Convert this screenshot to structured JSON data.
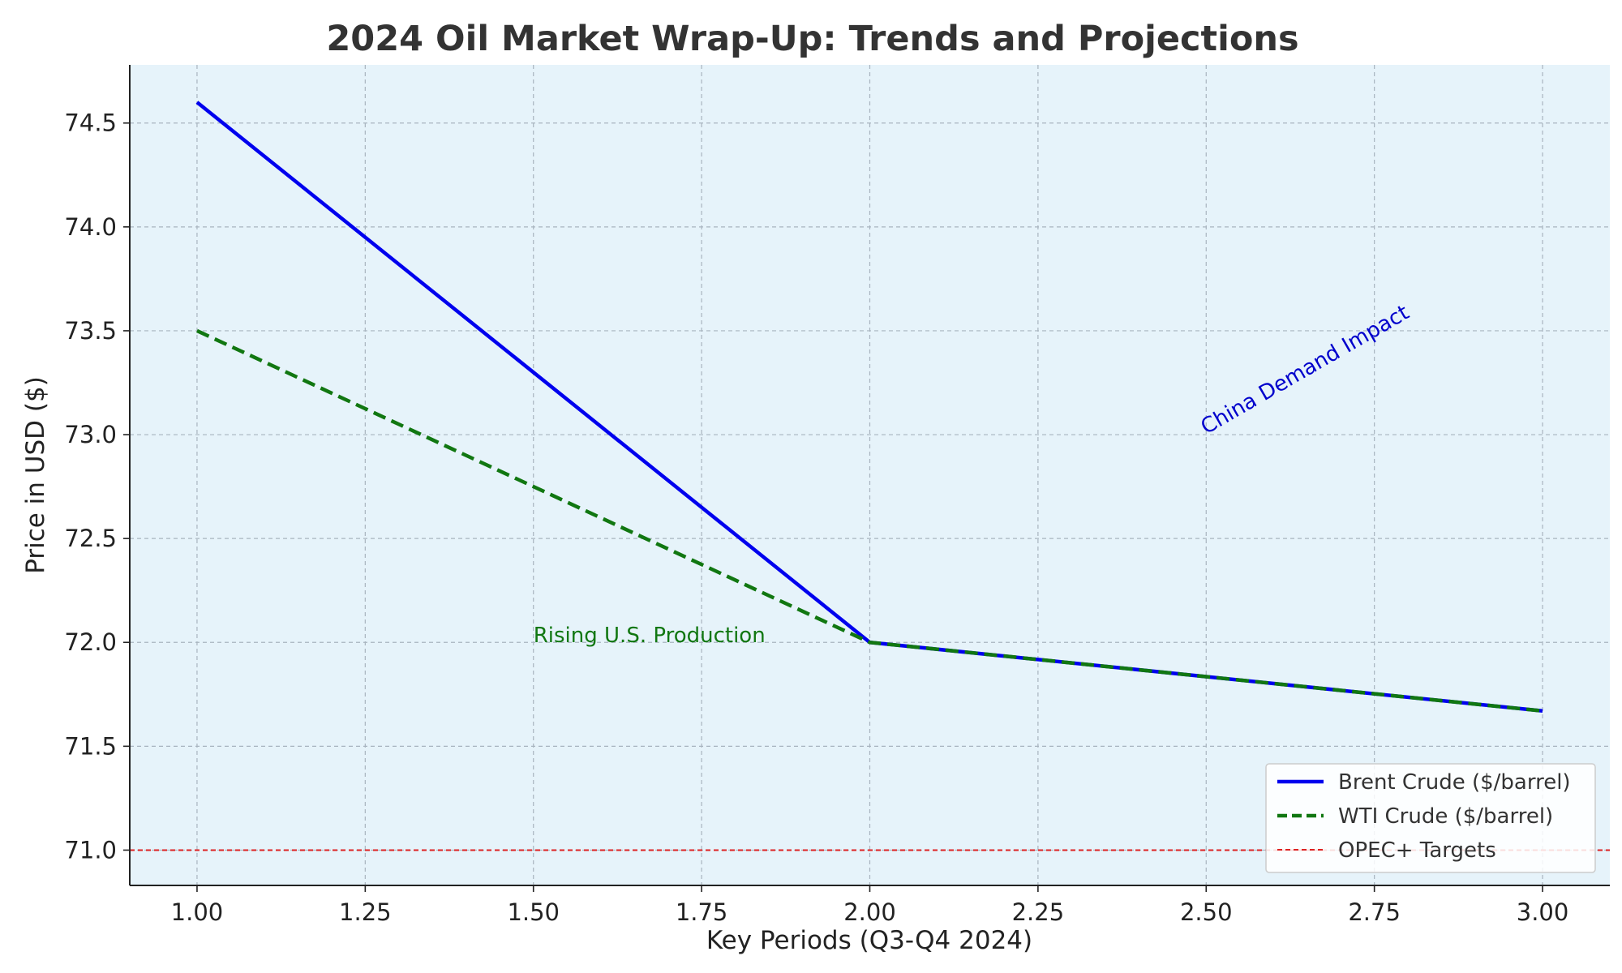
{
  "chart_data": {
    "type": "line",
    "title": "2024 Oil Market Wrap-Up: Trends and Projections",
    "xlabel": "Key Periods (Q3-Q4 2024)",
    "ylabel": "Price in USD ($)",
    "xlim": [
      0.9,
      3.1
    ],
    "ylim": [
      70.83,
      74.78
    ],
    "xticks": [
      1.0,
      1.25,
      1.5,
      1.75,
      2.0,
      2.25,
      2.5,
      2.75,
      3.0
    ],
    "xtick_labels": [
      "1.00",
      "1.25",
      "1.50",
      "1.75",
      "2.00",
      "2.25",
      "2.50",
      "2.75",
      "3.00"
    ],
    "yticks": [
      71.0,
      71.5,
      72.0,
      72.5,
      73.0,
      73.5,
      74.0,
      74.5
    ],
    "ytick_labels": [
      "71.0",
      "71.5",
      "72.0",
      "72.5",
      "73.0",
      "73.5",
      "74.0",
      "74.5"
    ],
    "grid": true,
    "background_color": "#e6f3fa",
    "legend_position": "lower-right",
    "series": [
      {
        "name": "Brent Crude ($/barrel)",
        "x": [
          1,
          2,
          3
        ],
        "y": [
          74.6,
          72.0,
          71.67
        ],
        "color": "#0000ee",
        "style": "solid"
      },
      {
        "name": "WTI Crude ($/barrel)",
        "x": [
          1,
          2,
          3
        ],
        "y": [
          73.5,
          72.0,
          71.67
        ],
        "color": "#117711",
        "style": "dashed"
      }
    ],
    "reference_lines": [
      {
        "name": "OPEC+ Targets",
        "y": 71.0,
        "color": "#dd2222",
        "style": "dashed"
      }
    ],
    "annotations": [
      {
        "text": "Rising U.S. Production",
        "x": 1.5,
        "y": 72.0,
        "color": "#117711",
        "rotation": 0
      },
      {
        "text": "China Demand Impact",
        "x": 2.5,
        "y": 73.0,
        "color": "#0000cc",
        "rotation": -30
      }
    ]
  }
}
